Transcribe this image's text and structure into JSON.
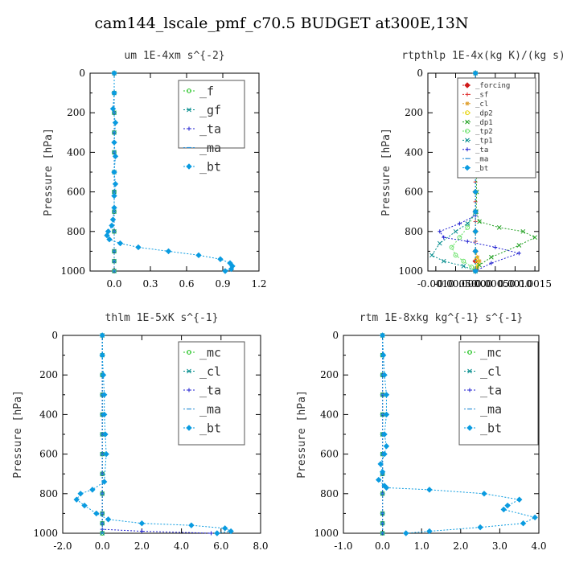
{
  "page_title": "cam144_lscale_pmf_c70.5  BUDGET at300E,13N",
  "chart_data": [
    {
      "type": "line",
      "title": "um  1E-4xm s^{-2}",
      "ylabel": "Pressure [hPa]",
      "xlim": [
        -0.2,
        1.2
      ],
      "ylim": [
        1000,
        0
      ],
      "xticks": [
        "0.0",
        "0.3",
        "0.6",
        "0.9",
        "1.2"
      ],
      "xtick_values": [
        0,
        0.3,
        0.6,
        0.9,
        1.2
      ],
      "yticks": [
        "0",
        "200",
        "400",
        "600",
        "800",
        "1000"
      ],
      "ytick_values": [
        0,
        200,
        400,
        600,
        800,
        1000
      ],
      "legend": {
        "position": "top-right",
        "font_small": false
      },
      "series": [
        {
          "name": "_f",
          "color": "#22c322",
          "marker": "circle",
          "x": [
            0,
            0,
            0,
            0,
            0,
            0,
            0,
            0,
            0,
            0,
            0,
            0
          ],
          "y": [
            0,
            100,
            200,
            300,
            400,
            500,
            600,
            700,
            800,
            900,
            950,
            1000
          ]
        },
        {
          "name": "_gf",
          "color": "#008b8b",
          "marker": "x",
          "x": [
            0,
            0,
            0,
            0,
            0,
            0,
            0,
            0,
            0,
            0,
            0,
            0
          ],
          "y": [
            0,
            100,
            200,
            300,
            400,
            500,
            600,
            700,
            800,
            900,
            950,
            1000
          ]
        },
        {
          "name": "_ta",
          "color": "#1f1fd0",
          "marker": "plus",
          "x": [
            0,
            0,
            0,
            0,
            0,
            0,
            0,
            0,
            0,
            0,
            0,
            0
          ],
          "y": [
            0,
            100,
            200,
            300,
            400,
            500,
            600,
            700,
            800,
            900,
            950,
            1000
          ]
        },
        {
          "name": "_ma",
          "color": "#2a8fd6",
          "marker": "dash",
          "x": [
            0,
            0,
            0,
            0,
            0,
            0,
            0,
            0,
            0,
            0,
            0,
            0
          ],
          "y": [
            0,
            100,
            200,
            300,
            400,
            500,
            600,
            700,
            800,
            900,
            950,
            1000
          ]
        },
        {
          "name": "_bt",
          "color": "#0a9be0",
          "marker": "diamond",
          "x": [
            0,
            0,
            -0.01,
            0.01,
            0,
            0.01,
            0,
            0.01,
            0,
            0,
            -0.01,
            -0.02,
            -0.05,
            -0.06,
            -0.04,
            0.05,
            0.2,
            0.45,
            0.7,
            0.88,
            0.96,
            0.98,
            0.97,
            0.92
          ],
          "y": [
            0,
            100,
            180,
            250,
            350,
            420,
            500,
            560,
            620,
            680,
            740,
            770,
            800,
            820,
            840,
            860,
            880,
            900,
            920,
            940,
            960,
            975,
            990,
            1000
          ]
        }
      ]
    },
    {
      "type": "line",
      "title": "rtpthlp  1E-4x(kg K)/(kg s)",
      "ylabel": "Pressure [hPa]",
      "xlim": [
        -0.0012,
        0.0016
      ],
      "ylim": [
        1000,
        0
      ],
      "xticks": [
        "-0.0010",
        "-0.00050",
        ".00000",
        "0.00050",
        "0.0010",
        "0.0015"
      ],
      "xtick_values": [
        -0.001,
        -0.0005,
        0,
        0.0005,
        0.001,
        0.0015
      ],
      "yticks": [
        "0",
        "200",
        "400",
        "600",
        "800",
        "1000"
      ],
      "ytick_values": [
        0,
        200,
        400,
        600,
        800,
        1000
      ],
      "legend": {
        "position": "top-right",
        "font_small": true
      },
      "series": [
        {
          "name": "_forcing",
          "color": "#d01a1a",
          "marker": "diamond",
          "x": [
            0,
            0,
            0,
            0,
            0,
            0,
            0,
            0,
            0,
            0,
            0,
            0
          ],
          "y": [
            0,
            100,
            200,
            300,
            400,
            500,
            600,
            700,
            800,
            900,
            950,
            1000
          ]
        },
        {
          "name": "_sf",
          "color": "#e03030",
          "marker": "plus",
          "x": [
            0,
            0,
            0,
            0,
            0,
            0,
            0,
            0,
            0,
            0,
            0,
            0,
            0,
            0,
            0,
            0,
            0,
            0,
            0,
            0,
            0
          ],
          "y": [
            0,
            50,
            100,
            150,
            200,
            250,
            300,
            350,
            400,
            450,
            500,
            550,
            600,
            650,
            700,
            750,
            800,
            850,
            900,
            950,
            1000
          ]
        },
        {
          "name": "_cl",
          "color": "#e0a030",
          "marker": "star",
          "x": [
            0,
            0,
            0,
            0,
            0,
            0,
            5e-05,
            0.0001,
            5e-05,
            0
          ],
          "y": [
            0,
            200,
            400,
            600,
            800,
            900,
            930,
            950,
            980,
            1000
          ]
        },
        {
          "name": "_dp2",
          "color": "#e6d200",
          "marker": "circle",
          "x": [
            0,
            0,
            0,
            0,
            0,
            0,
            3e-05,
            5e-05,
            2e-05,
            0
          ],
          "y": [
            0,
            200,
            400,
            600,
            800,
            900,
            940,
            960,
            985,
            1000
          ]
        },
        {
          "name": "_dp1",
          "color": "#22a022",
          "marker": "x",
          "x": [
            0,
            0,
            2e-05,
            3e-05,
            2e-05,
            0.0001,
            0.0006,
            0.0012,
            0.0015,
            0.0011,
            0.0004,
            0.0001,
            0
          ],
          "y": [
            300,
            400,
            500,
            600,
            700,
            750,
            780,
            800,
            830,
            870,
            930,
            970,
            1000
          ]
        },
        {
          "name": "_tp2",
          "color": "#60e060",
          "marker": "circle",
          "x": [
            0,
            0,
            0,
            0,
            -0.0002,
            -0.0004,
            -0.0006,
            -0.0005,
            -0.0003,
            -0.0001,
            0
          ],
          "y": [
            0,
            200,
            400,
            700,
            780,
            830,
            880,
            920,
            950,
            980,
            1000
          ]
        },
        {
          "name": "_tp1",
          "color": "#008b8b",
          "marker": "x",
          "x": [
            0,
            0,
            0,
            0,
            -0.0002,
            -0.0005,
            -0.0009,
            -0.0011,
            -0.0008,
            -0.0003,
            0
          ],
          "y": [
            0,
            200,
            400,
            700,
            760,
            800,
            860,
            920,
            950,
            975,
            1000
          ]
        },
        {
          "name": "_ta",
          "color": "#1f1fd0",
          "marker": "plus",
          "x": [
            0,
            0,
            0,
            0,
            -0.0004,
            -0.0009,
            -0.0008,
            -0.0002,
            0.0005,
            0.0011,
            0.0004,
            0
          ],
          "y": [
            0,
            200,
            400,
            720,
            760,
            800,
            830,
            850,
            880,
            910,
            960,
            1000
          ]
        },
        {
          "name": "_ma",
          "color": "#2a8fd6",
          "marker": "dash",
          "x": [
            0,
            0,
            0,
            0,
            0,
            0,
            0,
            0,
            0,
            0,
            0
          ],
          "y": [
            0,
            100,
            200,
            300,
            400,
            500,
            600,
            700,
            800,
            900,
            1000
          ]
        },
        {
          "name": "_bt",
          "color": "#0a9be0",
          "marker": "diamond",
          "x": [
            0,
            0,
            0,
            0,
            0,
            0,
            0,
            0,
            0,
            0,
            0
          ],
          "y": [
            0,
            100,
            200,
            300,
            400,
            500,
            600,
            700,
            800,
            900,
            1000
          ]
        }
      ]
    },
    {
      "type": "line",
      "title": "thlm  1E-5xK s^{-1}",
      "ylabel": "Pressure [hPa]",
      "xlim": [
        -2.0,
        8.0
      ],
      "ylim": [
        1000,
        0
      ],
      "xticks": [
        "-2.0",
        "0.0",
        "2.0",
        "4.0",
        "6.0",
        "8.0"
      ],
      "xtick_values": [
        -2,
        0,
        2,
        4,
        6,
        8
      ],
      "yticks": [
        "0",
        "200",
        "400",
        "600",
        "800",
        "1000"
      ],
      "ytick_values": [
        0,
        200,
        400,
        600,
        800,
        1000
      ],
      "legend": {
        "position": "top-right",
        "font_small": false
      },
      "series": [
        {
          "name": "_mc",
          "color": "#22c322",
          "marker": "circle",
          "x": [
            0,
            0,
            0,
            0,
            0,
            0,
            0,
            0,
            0,
            0,
            0,
            0
          ],
          "y": [
            0,
            100,
            200,
            300,
            400,
            500,
            600,
            700,
            800,
            900,
            950,
            1000
          ]
        },
        {
          "name": "_cl",
          "color": "#008b8b",
          "marker": "x",
          "x": [
            0,
            0,
            0,
            0,
            0,
            0,
            0,
            0,
            0,
            0,
            0,
            0
          ],
          "y": [
            0,
            100,
            200,
            300,
            400,
            500,
            600,
            700,
            800,
            900,
            950,
            1000
          ]
        },
        {
          "name": "_ta",
          "color": "#1f1fd0",
          "marker": "plus",
          "x": [
            0,
            0,
            0,
            0,
            0,
            0,
            0,
            0,
            0,
            0,
            0,
            0,
            2,
            5.5
          ],
          "y": [
            0,
            100,
            200,
            300,
            400,
            500,
            600,
            700,
            800,
            900,
            950,
            980,
            990,
            1000
          ]
        },
        {
          "name": "_ma",
          "color": "#2a8fd6",
          "marker": "dash",
          "x": [
            0,
            0,
            0,
            0,
            0,
            0,
            0,
            0,
            0,
            0,
            0,
            0
          ],
          "y": [
            0,
            100,
            200,
            300,
            400,
            500,
            600,
            700,
            800,
            900,
            950,
            1000
          ]
        },
        {
          "name": "_bt",
          "color": "#0a9be0",
          "marker": "diamond",
          "x": [
            0,
            0,
            0.05,
            0.1,
            0.1,
            0.15,
            0.2,
            0.1,
            -0.5,
            -1.1,
            -1.3,
            -0.9,
            -0.3,
            0.3,
            2.0,
            4.5,
            6.2,
            6.5,
            5.8
          ],
          "y": [
            0,
            100,
            200,
            300,
            400,
            500,
            600,
            740,
            780,
            800,
            830,
            860,
            900,
            930,
            950,
            960,
            975,
            990,
            1000
          ]
        }
      ]
    },
    {
      "type": "line",
      "title": "rtm  1E-8xkg kg^{-1} s^{-1}",
      "ylabel": "Pressure [hPa]",
      "xlim": [
        -1.0,
        4.0
      ],
      "ylim": [
        1000,
        0
      ],
      "xticks": [
        "-1.0",
        "0.0",
        "1.0",
        "2.0",
        "3.0",
        "4.0"
      ],
      "xtick_values": [
        -1,
        0,
        1,
        2,
        3,
        4
      ],
      "yticks": [
        "0",
        "200",
        "400",
        "600",
        "800",
        "1000"
      ],
      "ytick_values": [
        0,
        200,
        400,
        600,
        800,
        1000
      ],
      "legend": {
        "position": "top-right",
        "font_small": false
      },
      "series": [
        {
          "name": "_mc",
          "color": "#22c322",
          "marker": "circle",
          "x": [
            0,
            0,
            0,
            0,
            0,
            0,
            0,
            0,
            0,
            0,
            0,
            0
          ],
          "y": [
            0,
            100,
            200,
            300,
            400,
            500,
            600,
            700,
            800,
            900,
            950,
            1000
          ]
        },
        {
          "name": "_cl",
          "color": "#008b8b",
          "marker": "x",
          "x": [
            0,
            0,
            0,
            0,
            0,
            0,
            0,
            0,
            0,
            0,
            0,
            0
          ],
          "y": [
            0,
            100,
            200,
            300,
            400,
            500,
            600,
            700,
            800,
            900,
            950,
            1000
          ]
        },
        {
          "name": "_ta",
          "color": "#1f1fd0",
          "marker": "plus",
          "x": [
            0,
            0,
            0,
            0,
            0,
            0,
            0,
            0,
            0,
            0,
            0,
            0
          ],
          "y": [
            0,
            100,
            200,
            300,
            400,
            500,
            600,
            700,
            800,
            900,
            950,
            1000
          ]
        },
        {
          "name": "_ma",
          "color": "#2a8fd6",
          "marker": "dash",
          "x": [
            0,
            0,
            0,
            0,
            0,
            0,
            0,
            0,
            0,
            0,
            0,
            0
          ],
          "y": [
            0,
            100,
            200,
            300,
            400,
            500,
            600,
            700,
            800,
            900,
            950,
            1000
          ]
        },
        {
          "name": "_bt",
          "color": "#0a9be0",
          "marker": "diamond",
          "x": [
            0,
            0.02,
            0.05,
            0.1,
            0.1,
            0.05,
            0.1,
            0.05,
            -0.05,
            0,
            -0.1,
            0.05,
            0.1,
            1.2,
            2.6,
            3.5,
            3.2,
            3.1,
            3.9,
            3.6,
            2.5,
            1.2,
            0.6
          ],
          "y": [
            0,
            100,
            200,
            300,
            400,
            500,
            560,
            600,
            650,
            690,
            730,
            760,
            770,
            780,
            800,
            830,
            860,
            880,
            920,
            950,
            970,
            990,
            1000
          ]
        }
      ]
    }
  ]
}
